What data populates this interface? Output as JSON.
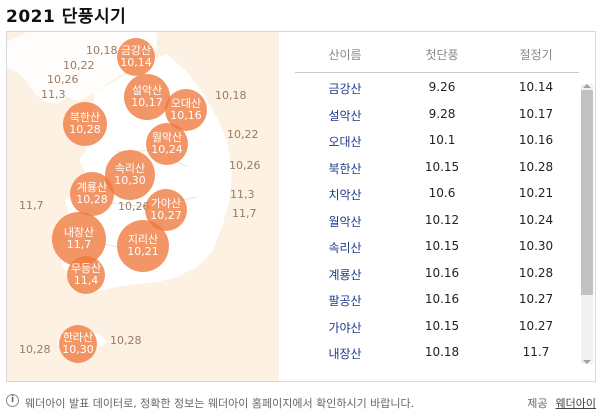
{
  "title": "2021 단풍시기",
  "map": {
    "labels": [
      {
        "id": "l1",
        "text": "10,18"
      },
      {
        "id": "l2",
        "text": "10,22"
      },
      {
        "id": "l3",
        "text": "10,26"
      },
      {
        "id": "l4",
        "text": "11,3"
      },
      {
        "id": "l5",
        "text": "10,18"
      },
      {
        "id": "l6",
        "text": "10,22"
      },
      {
        "id": "l7",
        "text": "10,26"
      },
      {
        "id": "l8",
        "text": "11,3"
      },
      {
        "id": "l9",
        "text": "11,7"
      },
      {
        "id": "l10",
        "text": "11,7"
      },
      {
        "id": "l11",
        "text": "10,26"
      },
      {
        "id": "l12",
        "text": "10,28"
      },
      {
        "id": "l13",
        "text": "10,28"
      }
    ],
    "bubbles": [
      {
        "id": "b1",
        "name": "금강산",
        "date": "10,14"
      },
      {
        "id": "b2",
        "name": "설악산",
        "date": "10,17"
      },
      {
        "id": "b3",
        "name": "오대산",
        "date": "10,16"
      },
      {
        "id": "b4",
        "name": "북한산",
        "date": "10,28"
      },
      {
        "id": "b5",
        "name": "월악산",
        "date": "10,24"
      },
      {
        "id": "b6",
        "name": "속리산",
        "date": "10,30"
      },
      {
        "id": "b7",
        "name": "계룡산",
        "date": "10,28"
      },
      {
        "id": "b8",
        "name": "가야산",
        "date": "10,27"
      },
      {
        "id": "b9",
        "name": "내장산",
        "date": "11,7"
      },
      {
        "id": "b10",
        "name": "지리산",
        "date": "10,21"
      },
      {
        "id": "b11",
        "name": "무등산",
        "date": "11,4"
      },
      {
        "id": "b12",
        "name": "한라산",
        "date": "10,30"
      }
    ]
  },
  "table": {
    "headers": {
      "name": "산이름",
      "first": "첫단풍",
      "peak": "절정기"
    },
    "rows": [
      {
        "name": "금강산",
        "first": "9.26",
        "peak": "10.14"
      },
      {
        "name": "설악산",
        "first": "9.28",
        "peak": "10.17"
      },
      {
        "name": "오대산",
        "first": "10.1",
        "peak": "10.16"
      },
      {
        "name": "북한산",
        "first": "10.15",
        "peak": "10.28"
      },
      {
        "name": "치악산",
        "first": "10.6",
        "peak": "10.21"
      },
      {
        "name": "월악산",
        "first": "10.12",
        "peak": "10.24"
      },
      {
        "name": "속리산",
        "first": "10.15",
        "peak": "10.30"
      },
      {
        "name": "계룡산",
        "first": "10.16",
        "peak": "10.28"
      },
      {
        "name": "팔공산",
        "first": "10.16",
        "peak": "10.27"
      },
      {
        "name": "가야산",
        "first": "10.15",
        "peak": "10.27"
      },
      {
        "name": "내장산",
        "first": "10.18",
        "peak": "11.7"
      }
    ]
  },
  "footer": {
    "icon": "info-icon",
    "note": "웨더아이 발표 데이터로, 정확한 정보는 웨더아이 홈페이지에서 확인하시기 바랍니다.",
    "credit_label": "제공",
    "credit_link": "웨더아이"
  },
  "colors": {
    "bubble": "#f0783c",
    "map_bg": "#fdf1e4",
    "land": "#ffffff",
    "mountain_name": "#1e3a8a"
  }
}
